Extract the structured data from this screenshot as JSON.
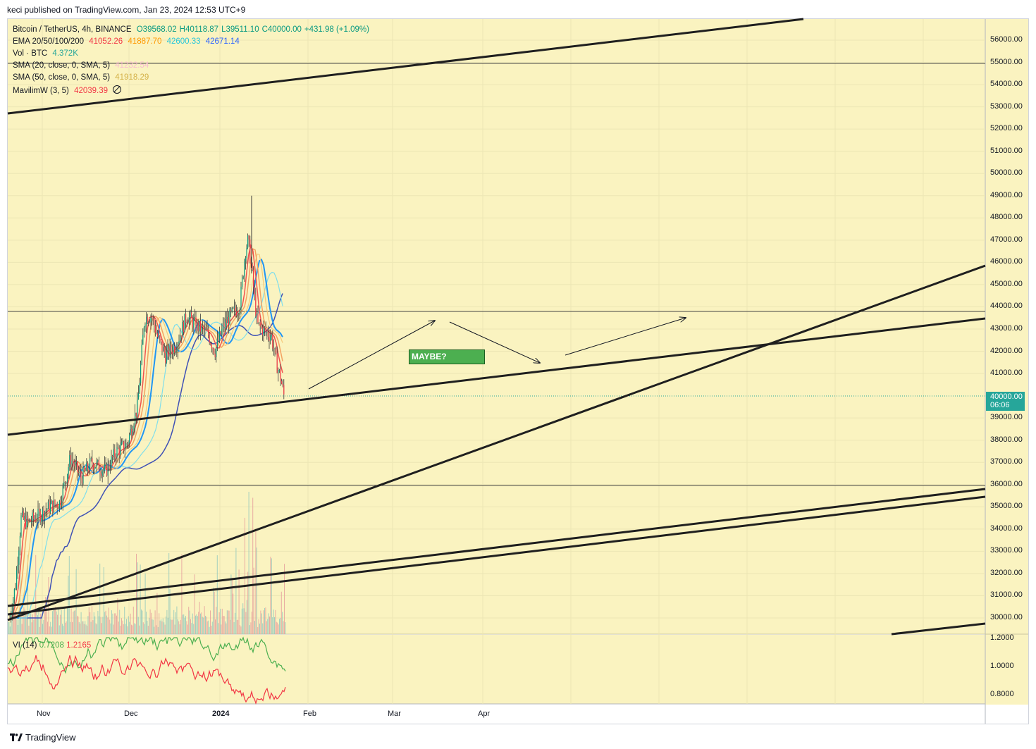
{
  "header": {
    "publish_line": "keci published on TradingView.com, Jan 23, 2024 12:53 UTC+9"
  },
  "symbol": {
    "name": "Bitcoin / TetherUS, 4h, BINANCE",
    "ohlc": {
      "open": "O39568.02",
      "high": "H40118.87",
      "low": "L39511.10",
      "close": "C40000.00",
      "change": "+431.98 (+1.09%)"
    }
  },
  "indicators": {
    "ema": {
      "label": "EMA 20/50/100/200",
      "values": [
        "41052.26",
        "41887.70",
        "42600.33",
        "42671.14"
      ],
      "colors": [
        "#f23645",
        "#ff9800",
        "#26c6da",
        "#2962ff"
      ]
    },
    "vol": {
      "label": "Vol · BTC",
      "value": "4.372K",
      "color": "#26a69a"
    },
    "sma20": {
      "label": "SMA (20, close, 0, SMA, 5)",
      "value": "41232.54",
      "color": "#f8bbd0"
    },
    "sma50": {
      "label": "SMA (50, close, 0, SMA, 5)",
      "value": "41918.29",
      "color": "#e0c060"
    },
    "mavilim": {
      "label": "MavilimW (3, 5)",
      "value": "42039.39",
      "icon": "eye-off-icon",
      "color": "#f23645"
    },
    "vi": {
      "label": "VI (14)",
      "plus": "0.7208",
      "minus": "1.2165",
      "plus_color": "#4caf50",
      "minus_color": "#f23645"
    }
  },
  "price_axis": {
    "ticks": [
      "56000.00",
      "55000.00",
      "54000.00",
      "53000.00",
      "52000.00",
      "51000.00",
      "50000.00",
      "49000.00",
      "48000.00",
      "47000.00",
      "46000.00",
      "45000.00",
      "44000.00",
      "43000.00",
      "42000.00",
      "41000.00",
      "39000.00",
      "38000.00",
      "37000.00",
      "36000.00",
      "35000.00",
      "34000.00",
      "33000.00",
      "32000.00",
      "31000.00",
      "30000.00"
    ],
    "current_price": "40000.00",
    "countdown": "06:06"
  },
  "vi_axis": {
    "ticks": [
      "1.2000",
      "1.0000",
      "0.8000"
    ]
  },
  "time_axis": {
    "ticks": [
      "Nov",
      "Dec",
      "2024",
      "Feb",
      "Mar",
      "Apr"
    ]
  },
  "annotation": {
    "text": "MAYBE?"
  },
  "footer": {
    "brand": "TradingView",
    "logo_icon": "tradingview-logo-icon"
  },
  "colors": {
    "background": "#faf3c0",
    "accent_green": "#4caf50",
    "price_tag": "#26a69a"
  }
}
